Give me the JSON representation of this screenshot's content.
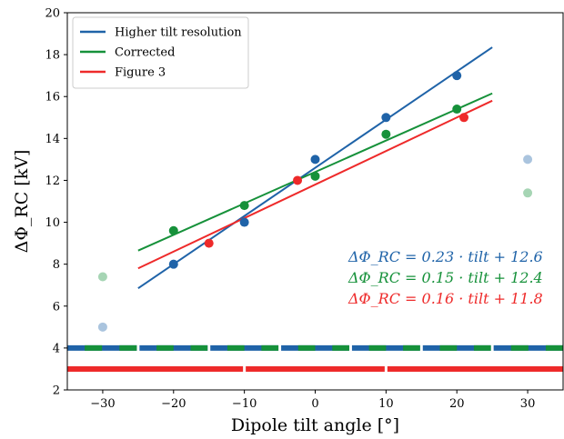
{
  "chart_data": {
    "type": "scatter",
    "xlabel": "Dipole tilt angle [°]",
    "ylabel": "ΔΦ_RC [kV]",
    "xlim": [
      -35,
      35
    ],
    "ylim": [
      2,
      20
    ],
    "xticks": [
      -30,
      -20,
      -10,
      0,
      10,
      20,
      30
    ],
    "xtick_labels": [
      "−30",
      "−20",
      "−10",
      "0",
      "10",
      "20",
      "30"
    ],
    "yticks": [
      2,
      4,
      6,
      8,
      10,
      12,
      14,
      16,
      18,
      20
    ],
    "grid": false,
    "legend_position": "top-left",
    "legend": [
      "Higher tilt resolution",
      "Corrected",
      "Figure 3"
    ],
    "series": [
      {
        "name": "Higher tilt resolution",
        "color": "#1f63a8",
        "points": [
          [
            -20,
            8.0
          ],
          [
            -10,
            10.0
          ],
          [
            0,
            13.0
          ],
          [
            10,
            15.0
          ],
          [
            20,
            17.0
          ]
        ],
        "excluded_points": [
          [
            -30,
            5.0
          ],
          [
            30,
            13.0
          ]
        ],
        "fit": {
          "slope": 0.23,
          "intercept": 12.6,
          "x_range": [
            -25,
            25
          ]
        },
        "equation": "ΔΦ_RC = 0.23 · tilt + 12.6",
        "coverage_bar": {
          "y": 4,
          "segments": [
            [
              -35,
              -25
            ],
            [
              -25,
              -15
            ],
            [
              -15,
              -5
            ],
            [
              -5,
              5
            ],
            [
              5,
              15
            ],
            [
              15,
              25
            ],
            [
              25,
              35
            ]
          ]
        }
      },
      {
        "name": "Corrected",
        "color": "#16913a",
        "points": [
          [
            -20,
            9.6
          ],
          [
            -10,
            10.8
          ],
          [
            0,
            12.2
          ],
          [
            10,
            14.2
          ],
          [
            20,
            15.4
          ]
        ],
        "excluded_points": [
          [
            -30,
            7.4
          ],
          [
            30,
            11.4
          ]
        ],
        "fit": {
          "slope": 0.15,
          "intercept": 12.4,
          "x_range": [
            -25,
            25
          ]
        },
        "equation": "ΔΦ_RC = 0.15 · tilt + 12.4",
        "coverage_bar": {
          "y": 4,
          "segments": [
            [
              -35,
              -25
            ],
            [
              -25,
              -15
            ],
            [
              -15,
              -5
            ],
            [
              -5,
              5
            ],
            [
              5,
              15
            ],
            [
              15,
              25
            ],
            [
              25,
              35
            ]
          ]
        }
      },
      {
        "name": "Figure 3",
        "color": "#ee2a2a",
        "points": [
          [
            -15,
            9.0
          ],
          [
            -2.5,
            12.0
          ],
          [
            21,
            15.0
          ]
        ],
        "excluded_points": [],
        "fit": {
          "slope": 0.16,
          "intercept": 11.8,
          "x_range": [
            -25,
            25
          ]
        },
        "equation": "ΔΦ_RC = 0.16 · tilt + 11.8",
        "coverage_bar": {
          "y": 3,
          "segments": [
            [
              -35,
              -10
            ],
            [
              -10,
              10
            ],
            [
              10,
              35
            ]
          ]
        }
      }
    ]
  }
}
